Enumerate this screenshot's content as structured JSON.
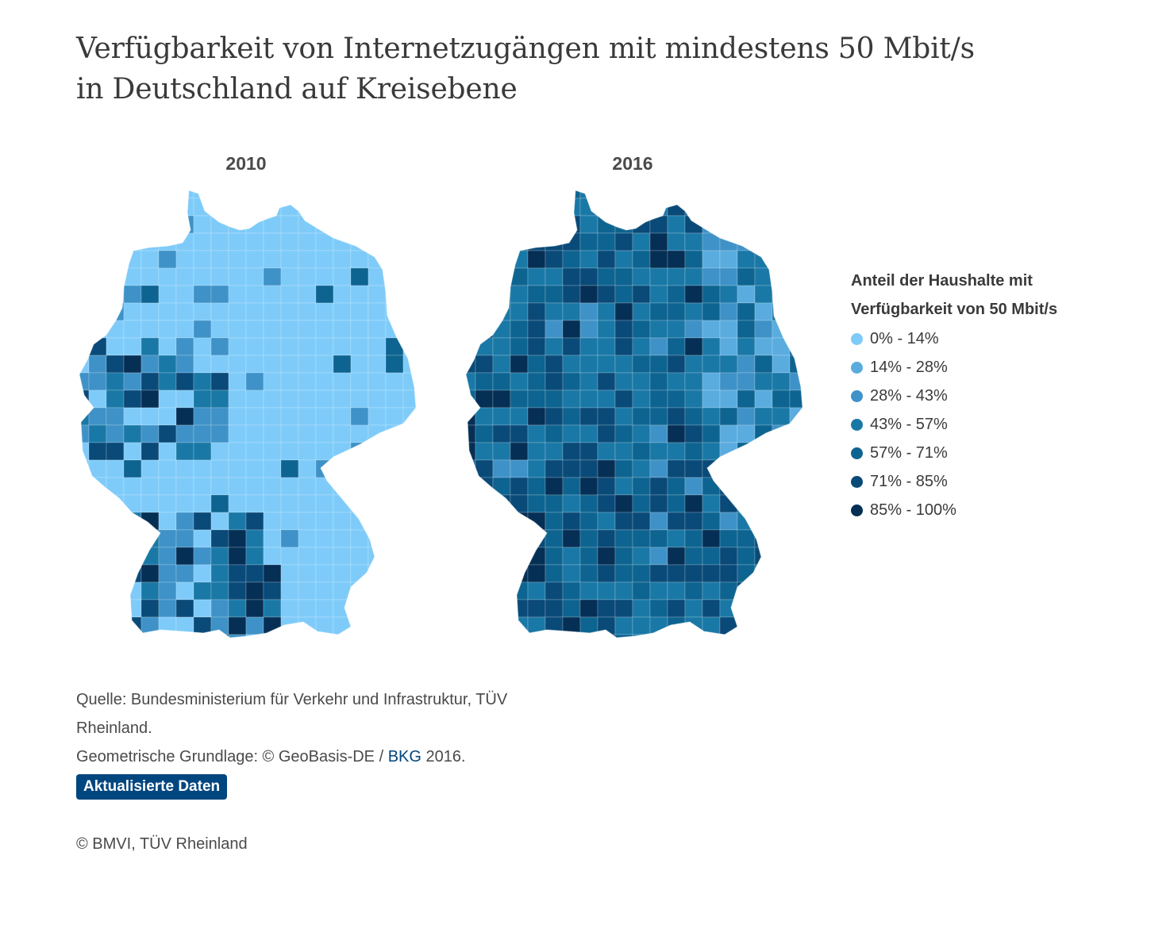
{
  "title": "Verfügbarkeit von Internetzugängen mit mindestens 50 Mbit/s in Deutschland auf Kreisebene",
  "maps": [
    {
      "label": "2010",
      "scheme": "mostly-low"
    },
    {
      "label": "2016",
      "scheme": "mostly-high"
    }
  ],
  "legend": {
    "title_line1": "Anteil der Haushalte mit",
    "title_line2": "Verfügbarkeit von 50 Mbit/s",
    "items": [
      {
        "label": "0% - 14%",
        "color": "#7ecbf9"
      },
      {
        "label": "14% - 28%",
        "color": "#5aacdf"
      },
      {
        "label": "28% - 43%",
        "color": "#3f92c7"
      },
      {
        "label": "43% - 57%",
        "color": "#1a78a6"
      },
      {
        "label": "57% - 71%",
        "color": "#0e6490"
      },
      {
        "label": "71% - 85%",
        "color": "#0a4a78"
      },
      {
        "label": "85% - 100%",
        "color": "#062f55"
      }
    ]
  },
  "source": {
    "line1": "Quelle: Bundesministerium für Verkehr und Infrastruktur, TÜV Rheinland.",
    "geo_prefix": "Geometrische Grundlage: © GeoBasis-DE / ",
    "geo_link": "BKG",
    "geo_suffix": " 2016."
  },
  "button_label": "Aktualisierte Daten",
  "copyright": "© BMVI, TÜV Rheinland"
}
